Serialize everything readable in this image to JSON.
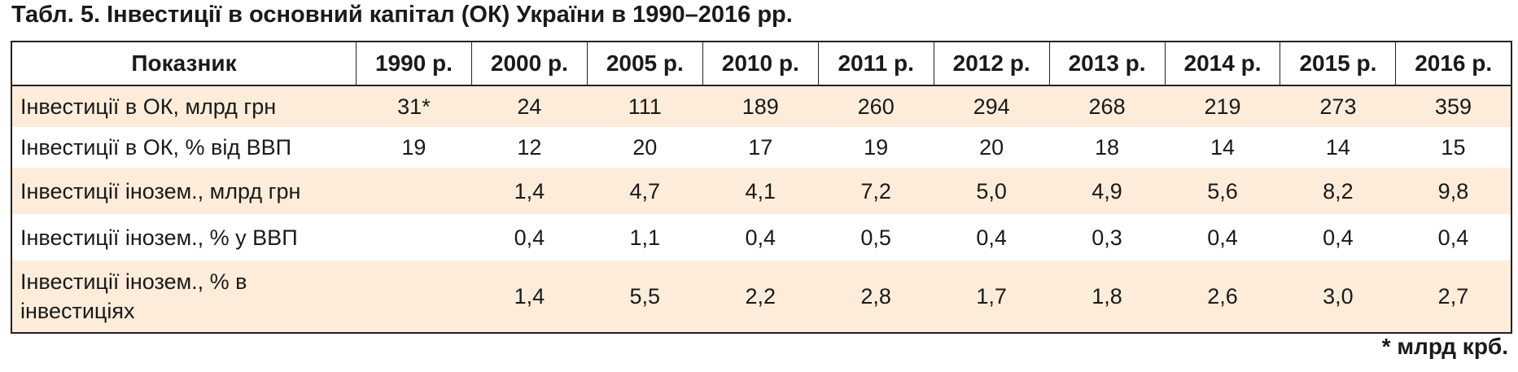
{
  "caption": "Табл. 5. Інвестиції в основний капітал (ОК) України в 1990–2016 рр.",
  "table": {
    "header": [
      "Показник",
      "1990 р.",
      "2000 р.",
      "2005 р.",
      "2010 р.",
      "2011 р.",
      "2012 р.",
      "2013 р.",
      "2014 р.",
      "2015 р.",
      "2016 р."
    ],
    "rows": [
      [
        "Інвестиції в ОК, млрд грн",
        "31*",
        "24",
        "111",
        "189",
        "260",
        "294",
        "268",
        "219",
        "273",
        "359"
      ],
      [
        "Інвестиції в ОК, % від ВВП",
        "19",
        "12",
        "20",
        "17",
        "19",
        "20",
        "18",
        "14",
        "14",
        "15"
      ],
      [
        "Інвестиції інозем., млрд грн",
        "",
        "1,4",
        "4,7",
        "4,1",
        "7,2",
        "5,0",
        "4,9",
        "5,6",
        "8,2",
        "9,8"
      ],
      [
        "Інвестиції інозем., % у ВВП",
        "",
        "0,4",
        "1,1",
        "0,4",
        "0,5",
        "0,4",
        "0,3",
        "0,4",
        "0,4",
        "0,4"
      ],
      [
        "Інвестиції інозем., % в інвестиціях",
        "",
        "1,4",
        "5,5",
        "2,2",
        "2,8",
        "1,7",
        "1,8",
        "2,6",
        "3,0",
        "2,7"
      ]
    ]
  },
  "footnote": "* млрд крб.",
  "colors": {
    "row_shade": "#fcecd9",
    "border": "#222222"
  }
}
